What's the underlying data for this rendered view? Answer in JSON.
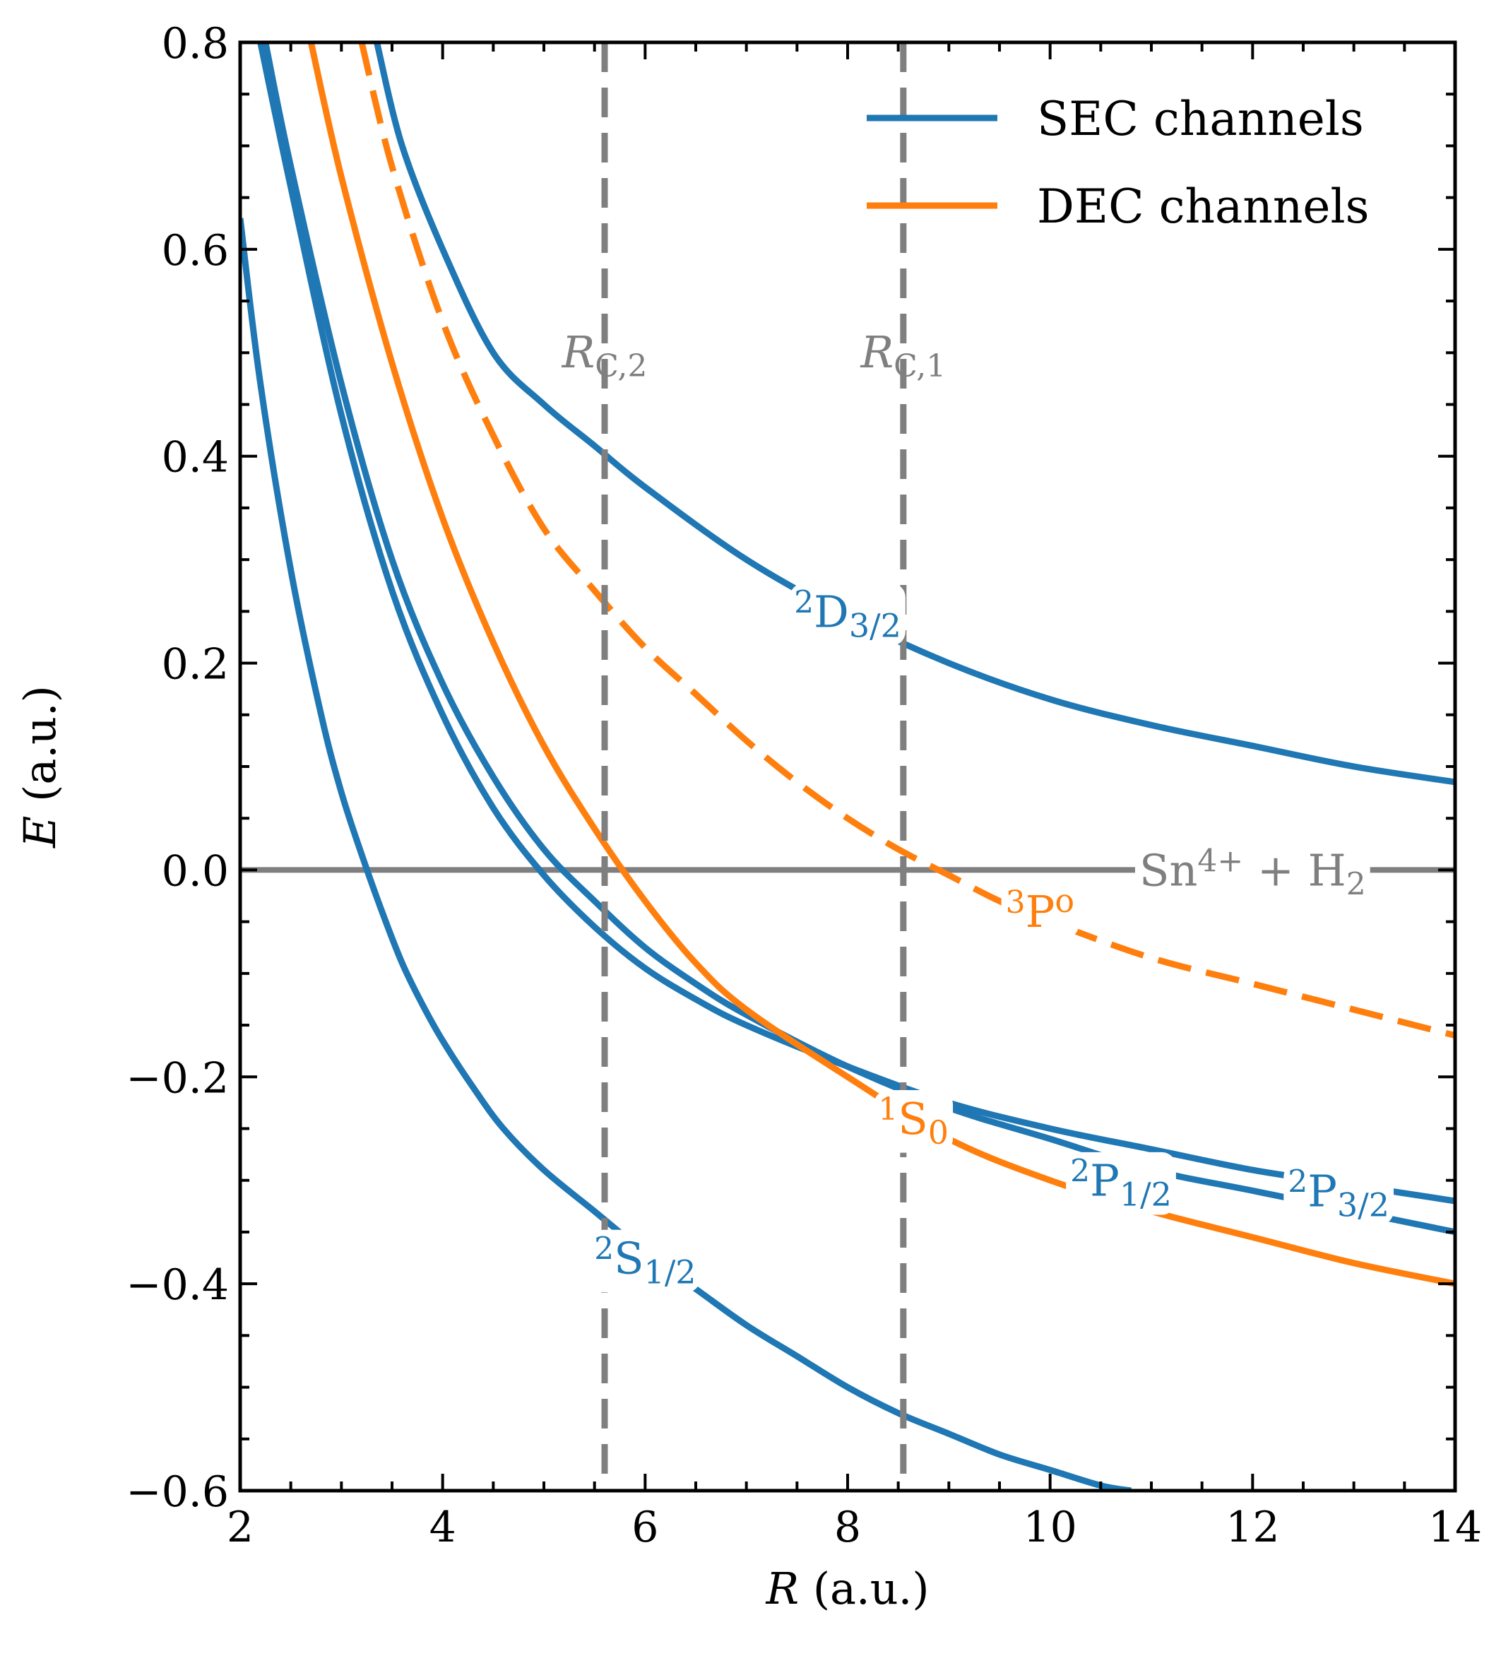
{
  "chart_data": {
    "type": "line",
    "xlabel_var": "R",
    "xlabel_unit": "(a.u.)",
    "ylabel_var": "E",
    "ylabel_unit": "(a.u.)",
    "xlim": [
      2,
      14
    ],
    "ylim": [
      -0.6,
      0.8
    ],
    "xticks": [
      2,
      4,
      6,
      8,
      10,
      12,
      14
    ],
    "yticks": [
      -0.6,
      -0.4,
      -0.2,
      0.0,
      0.2,
      0.4,
      0.6,
      0.8
    ],
    "ytick_labels": [
      "−0.6",
      "−0.4",
      "−0.2",
      "0.0",
      "0.2",
      "0.4",
      "0.6",
      "0.8"
    ],
    "legend": [
      {
        "label": "SEC channels",
        "color": "#1f77b4"
      },
      {
        "label": "DEC channels",
        "color": "#ff7f0e"
      }
    ],
    "colors": {
      "sec": "#1f77b4",
      "dec": "#ff7f0e",
      "reference": "#7f7f7f"
    },
    "series": [
      {
        "name": "2S1/2",
        "group": "SEC",
        "style": "solid",
        "x": [
          2.0,
          2.2,
          2.5,
          2.8,
          3.0,
          3.2,
          3.4,
          3.6,
          3.8,
          4.0,
          4.3,
          4.6,
          5.0,
          5.5,
          6.0,
          6.5,
          7.0,
          7.5,
          8.0,
          8.5,
          9.0,
          9.5,
          10.0,
          10.5,
          10.8
        ],
        "y": [
          0.63,
          0.47,
          0.29,
          0.15,
          0.075,
          0.015,
          -0.04,
          -0.09,
          -0.13,
          -0.165,
          -0.21,
          -0.25,
          -0.29,
          -0.33,
          -0.37,
          -0.405,
          -0.44,
          -0.47,
          -0.5,
          -0.525,
          -0.545,
          -0.565,
          -0.58,
          -0.595,
          -0.6
        ]
      },
      {
        "name": "2P1/2",
        "group": "SEC",
        "style": "solid",
        "x": [
          2.25,
          2.5,
          3.0,
          3.5,
          4.0,
          4.5,
          5.0,
          5.5,
          6.0,
          6.5,
          7.0,
          8.0,
          9.0,
          10.0,
          11.0,
          12.0,
          13.0,
          14.0
        ],
        "y": [
          0.8,
          0.68,
          0.47,
          0.3,
          0.18,
          0.09,
          0.02,
          -0.03,
          -0.075,
          -0.11,
          -0.14,
          -0.19,
          -0.23,
          -0.26,
          -0.29,
          -0.31,
          -0.33,
          -0.35
        ]
      },
      {
        "name": "2P3/2",
        "group": "SEC",
        "style": "solid",
        "x": [
          2.2,
          2.5,
          3.0,
          3.5,
          4.0,
          4.5,
          5.0,
          5.5,
          6.0,
          6.5,
          7.0,
          8.0,
          9.0,
          10.0,
          11.0,
          12.0,
          13.0,
          14.0
        ],
        "y": [
          0.8,
          0.66,
          0.44,
          0.27,
          0.15,
          0.06,
          -0.005,
          -0.055,
          -0.095,
          -0.125,
          -0.15,
          -0.19,
          -0.225,
          -0.25,
          -0.27,
          -0.29,
          -0.305,
          -0.32
        ]
      },
      {
        "name": "2D3/2",
        "group": "SEC",
        "style": "solid",
        "x": [
          3.35,
          3.6,
          4.0,
          4.5,
          5.0,
          5.5,
          6.0,
          7.0,
          8.0,
          9.0,
          10.0,
          11.0,
          12.0,
          13.0,
          14.0
        ],
        "y": [
          0.8,
          0.7,
          0.6,
          0.5,
          0.45,
          0.41,
          0.37,
          0.3,
          0.245,
          0.2,
          0.165,
          0.14,
          0.12,
          0.1,
          0.085
        ]
      },
      {
        "name": "1S0",
        "group": "DEC",
        "style": "solid",
        "x": [
          2.7,
          3.0,
          3.5,
          4.0,
          4.5,
          5.0,
          5.5,
          6.0,
          6.5,
          7.0,
          8.0,
          9.0,
          10.0,
          11.0,
          12.0,
          13.0,
          14.0
        ],
        "y": [
          0.8,
          0.67,
          0.49,
          0.34,
          0.22,
          0.12,
          0.04,
          -0.03,
          -0.09,
          -0.135,
          -0.2,
          -0.26,
          -0.3,
          -0.33,
          -0.355,
          -0.38,
          -0.4
        ]
      },
      {
        "name": "3Po",
        "group": "DEC",
        "style": "dashed",
        "x": [
          3.2,
          3.5,
          4.0,
          4.5,
          5.0,
          5.5,
          6.0,
          6.5,
          7.0,
          7.5,
          8.0,
          8.5,
          9.0,
          9.5,
          10.0,
          11.0,
          12.0,
          13.0,
          14.0
        ],
        "y": [
          0.8,
          0.68,
          0.53,
          0.42,
          0.33,
          0.27,
          0.215,
          0.17,
          0.125,
          0.085,
          0.05,
          0.02,
          -0.005,
          -0.03,
          -0.05,
          -0.085,
          -0.11,
          -0.135,
          -0.16
        ]
      }
    ],
    "curve_labels": [
      {
        "series": "2D3/2",
        "pre": "2",
        "main": "D",
        "sub": "3/2",
        "x": 8.0,
        "y": 0.25
      },
      {
        "series": "2S1/2",
        "pre": "2",
        "main": "S",
        "sub": "1/2",
        "x": 6.0,
        "y": -0.375
      },
      {
        "series": "1S0",
        "pre": "1",
        "main": "S",
        "sub": "0",
        "x": 8.65,
        "y": -0.24
      },
      {
        "series": "2P1/2",
        "pre": "2",
        "main": "P",
        "sub": "1/2",
        "x": 10.7,
        "y": -0.3
      },
      {
        "series": "2P3/2",
        "pre": "2",
        "main": "P",
        "sub": "3/2",
        "x": 12.85,
        "y": -0.31
      },
      {
        "series": "3Po",
        "pre": "3",
        "main": "P",
        "sup": "o",
        "x": 9.9,
        "y": -0.04
      }
    ],
    "vertical_lines": [
      {
        "x": 5.6,
        "main": "R",
        "sub": "C,2"
      },
      {
        "x": 8.55,
        "main": "R",
        "sub": "C,1"
      }
    ],
    "horizontal_line": {
      "y": 0.0,
      "main": "Sn",
      "sup": "4+",
      "mid": " + H",
      "sub": "2"
    }
  }
}
